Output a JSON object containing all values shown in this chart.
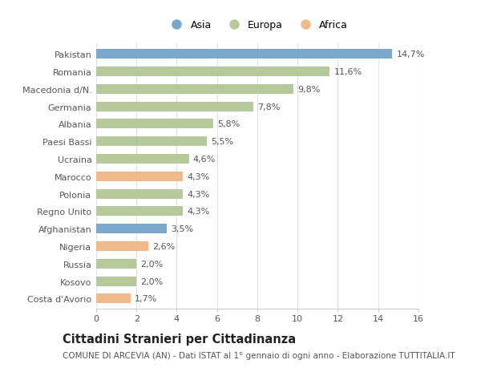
{
  "categories": [
    "Pakistan",
    "Romania",
    "Macedonia d/N.",
    "Germania",
    "Albania",
    "Paesi Bassi",
    "Ucraina",
    "Marocco",
    "Polonia",
    "Regno Unito",
    "Afghanistan",
    "Nigeria",
    "Russia",
    "Kosovo",
    "Costa d'Avorio"
  ],
  "values": [
    14.7,
    11.6,
    9.8,
    7.8,
    5.8,
    5.5,
    4.6,
    4.3,
    4.3,
    4.3,
    3.5,
    2.6,
    2.0,
    2.0,
    1.7
  ],
  "labels": [
    "14,7%",
    "11,6%",
    "9,8%",
    "7,8%",
    "5,8%",
    "5,5%",
    "4,6%",
    "4,3%",
    "4,3%",
    "4,3%",
    "3,5%",
    "2,6%",
    "2,0%",
    "2,0%",
    "1,7%"
  ],
  "continent": [
    "Asia",
    "Europa",
    "Europa",
    "Europa",
    "Europa",
    "Europa",
    "Europa",
    "Africa",
    "Europa",
    "Europa",
    "Asia",
    "Africa",
    "Europa",
    "Europa",
    "Africa"
  ],
  "colors": {
    "Asia": "#7ba7cb",
    "Europa": "#b5c99a",
    "Africa": "#f0b98a"
  },
  "legend_labels": [
    "Asia",
    "Europa",
    "Africa"
  ],
  "legend_colors": [
    "#7ba7cb",
    "#b5c99a",
    "#f0b98a"
  ],
  "title": "Cittadini Stranieri per Cittadinanza",
  "subtitle": "COMUNE DI ARCEVIA (AN) - Dati ISTAT al 1° gennaio di ogni anno - Elaborazione TUTTITALIA.IT",
  "xlim": [
    0,
    16
  ],
  "xticks": [
    0,
    2,
    4,
    6,
    8,
    10,
    12,
    14,
    16
  ],
  "background_color": "#ffffff",
  "bar_height": 0.55,
  "grid_color": "#e0e0e0",
  "label_fontsize": 8,
  "tick_fontsize": 8,
  "title_fontsize": 10.5,
  "subtitle_fontsize": 7.5
}
